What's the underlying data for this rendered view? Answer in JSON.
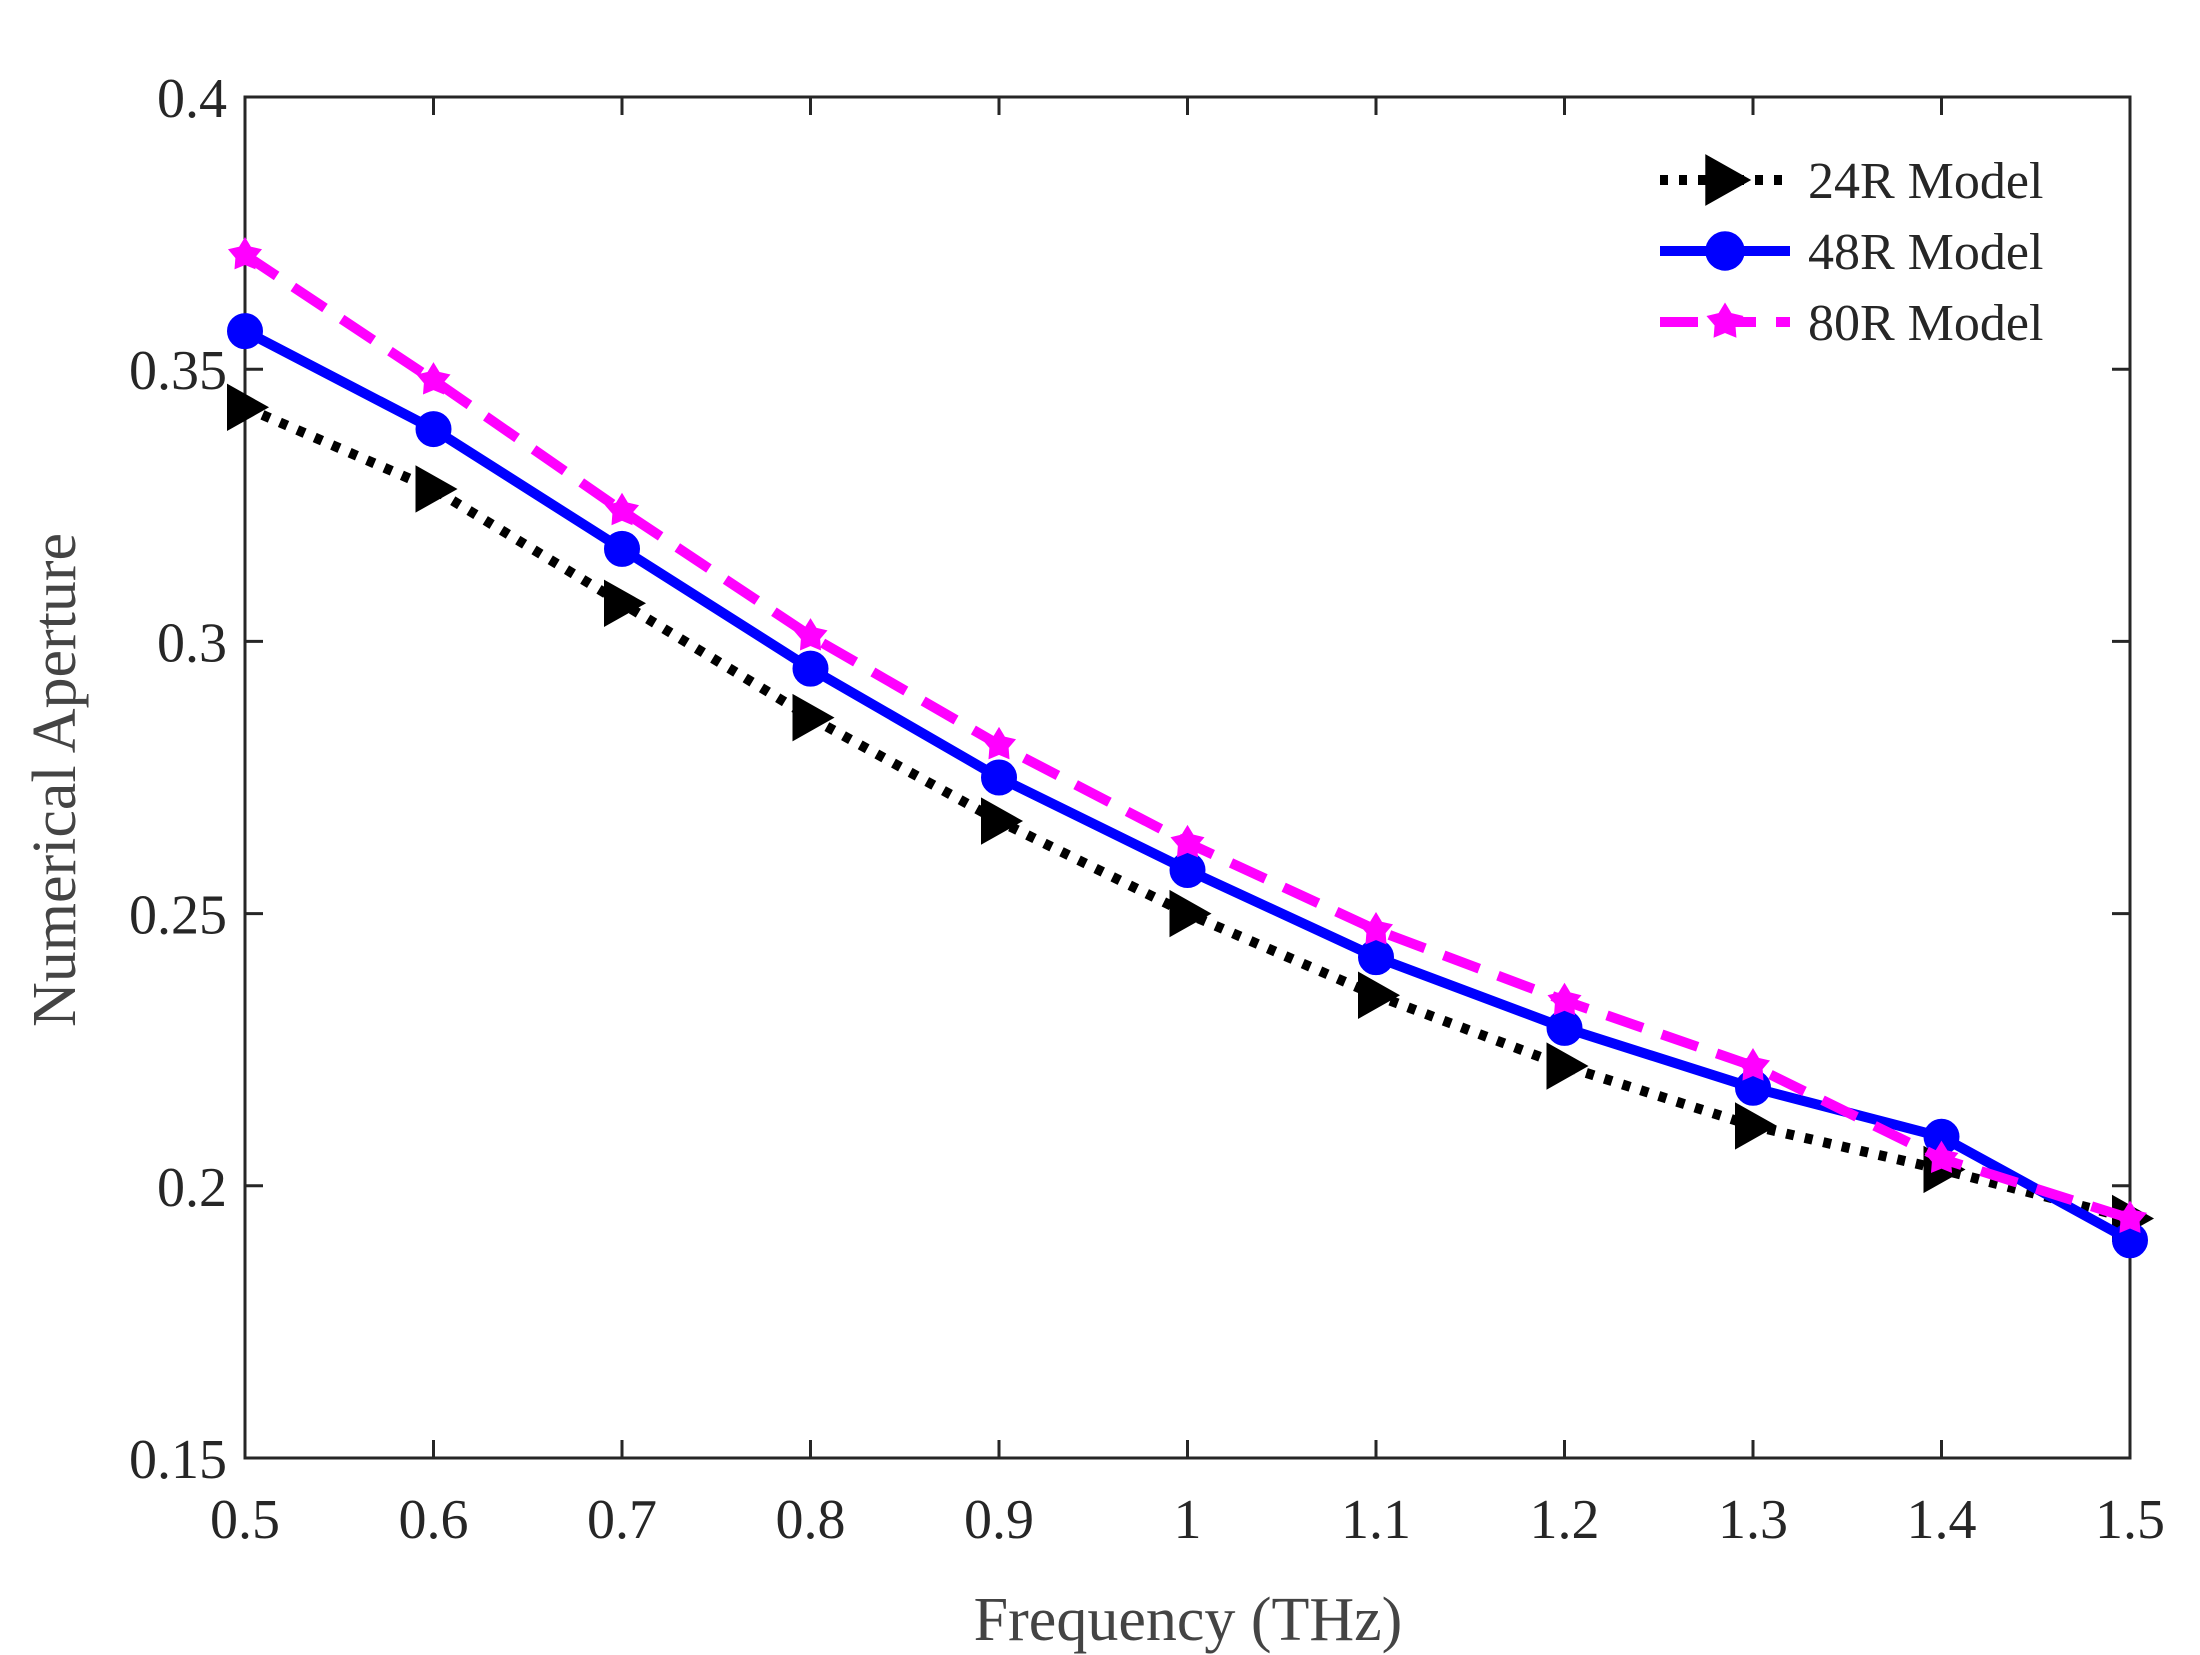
{
  "chart_data": {
    "type": "line",
    "title": "",
    "xlabel": "Frequency (THz)",
    "ylabel": "Numerical Aperture",
    "xlim": [
      0.5,
      1.5
    ],
    "ylim": [
      0.15,
      0.4
    ],
    "xticks": [
      {
        "value": 0.5,
        "label": "0.5"
      },
      {
        "value": 0.6,
        "label": "0.6"
      },
      {
        "value": 0.7,
        "label": "0.7"
      },
      {
        "value": 0.8,
        "label": "0.8"
      },
      {
        "value": 0.9,
        "label": "0.9"
      },
      {
        "value": 1.0,
        "label": "1"
      },
      {
        "value": 1.1,
        "label": "1.1"
      },
      {
        "value": 1.2,
        "label": "1.2"
      },
      {
        "value": 1.3,
        "label": "1.3"
      },
      {
        "value": 1.4,
        "label": "1.4"
      },
      {
        "value": 1.5,
        "label": "1.5"
      }
    ],
    "yticks": [
      {
        "value": 0.15,
        "label": "0.15"
      },
      {
        "value": 0.2,
        "label": "0.2"
      },
      {
        "value": 0.25,
        "label": "0.25"
      },
      {
        "value": 0.3,
        "label": "0.3"
      },
      {
        "value": 0.35,
        "label": "0.35"
      },
      {
        "value": 0.4,
        "label": "0.4"
      }
    ],
    "grid": false,
    "legend_position": "top-right",
    "x": [
      0.5,
      0.6,
      0.7,
      0.8,
      0.9,
      1.0,
      1.1,
      1.2,
      1.3,
      1.4,
      1.5
    ],
    "series": [
      {
        "name": "24R Model",
        "color": "#000000",
        "line_style": "dotted",
        "marker": "triangle-right",
        "values": [
          0.343,
          0.328,
          0.307,
          0.286,
          0.267,
          0.25,
          0.235,
          0.222,
          0.211,
          0.203,
          0.194
        ]
      },
      {
        "name": "48R Model",
        "color": "#0000ff",
        "line_style": "solid",
        "marker": "circle",
        "values": [
          0.357,
          0.339,
          0.317,
          0.295,
          0.275,
          0.258,
          0.242,
          0.229,
          0.218,
          0.209,
          0.19
        ]
      },
      {
        "name": "80R Model",
        "color": "#ff00ff",
        "line_style": "dashed",
        "marker": "star",
        "values": [
          0.371,
          0.348,
          0.324,
          0.301,
          0.281,
          0.263,
          0.247,
          0.234,
          0.222,
          0.205,
          0.194
        ]
      }
    ]
  }
}
